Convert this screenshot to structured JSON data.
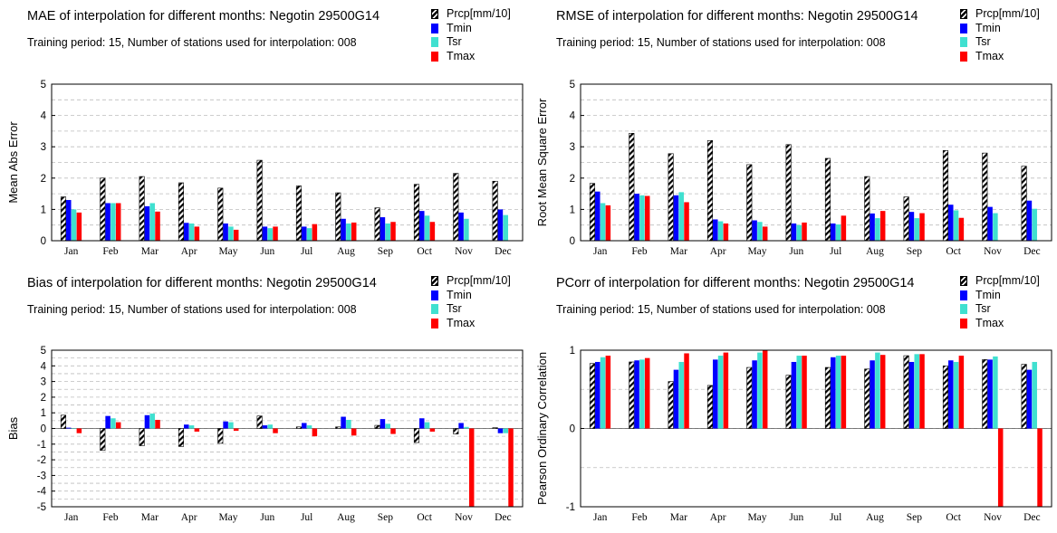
{
  "legend": [
    {
      "name": "Prcp[mm/10]",
      "color": "hatch"
    },
    {
      "name": "Tmin",
      "color": "#0000ff"
    },
    {
      "name": "Tsr",
      "color": "#40e0d0"
    },
    {
      "name": "Tmax",
      "color": "#ff0000"
    }
  ],
  "months": [
    "Jan",
    "Feb",
    "Mar",
    "Apr",
    "May",
    "Jun",
    "Jul",
    "Aug",
    "Sep",
    "Oct",
    "Nov",
    "Dec"
  ],
  "chart_data": [
    {
      "id": "mae",
      "type": "bar",
      "title": "MAE of interpolation for different months: Negotin  29500G14",
      "subtitle": "Training period: 15, Number of stations used for interpolation: 008",
      "ylabel": "Mean Abs Error",
      "xlabel": "",
      "ylim": [
        0,
        5
      ],
      "yticks": [
        "0",
        "1",
        "2",
        "3",
        "4",
        "5"
      ],
      "ytick_values": [
        0,
        1,
        2,
        3,
        4,
        5
      ],
      "grid": true,
      "legend_position": "top-right",
      "categories": [
        "Jan",
        "Feb",
        "Mar",
        "Apr",
        "May",
        "Jun",
        "Jul",
        "Aug",
        "Sep",
        "Oct",
        "Nov",
        "Dec"
      ],
      "series": [
        {
          "name": "Prcp[mm/10]",
          "values": [
            1.4,
            2.0,
            2.05,
            1.85,
            1.68,
            2.57,
            1.75,
            1.53,
            1.05,
            1.8,
            2.15,
            1.9
          ]
        },
        {
          "name": "Tmin",
          "values": [
            1.3,
            1.2,
            1.1,
            0.57,
            0.55,
            0.45,
            0.45,
            0.7,
            0.75,
            0.95,
            0.9,
            1.0
          ]
        },
        {
          "name": "Tsr",
          "values": [
            1.0,
            1.2,
            1.2,
            0.55,
            0.45,
            0.4,
            0.4,
            0.55,
            0.55,
            0.8,
            0.7,
            0.82
          ]
        },
        {
          "name": "Tmax",
          "values": [
            0.9,
            1.2,
            0.93,
            0.45,
            0.35,
            0.45,
            0.53,
            0.58,
            0.6,
            0.6,
            null,
            null
          ]
        }
      ]
    },
    {
      "id": "rmse",
      "type": "bar",
      "title": "RMSE of interpolation for different months: Negotin  29500G14",
      "subtitle": "Training period: 15, Number of stations used for interpolation: 008",
      "ylabel": "Root Mean Square Error",
      "xlabel": "",
      "ylim": [
        0,
        5
      ],
      "yticks": [
        "0",
        "1",
        "2",
        "3",
        "4",
        "5"
      ],
      "ytick_values": [
        0,
        1,
        2,
        3,
        4,
        5
      ],
      "grid": true,
      "legend_position": "top-right",
      "categories": [
        "Jan",
        "Feb",
        "Mar",
        "Apr",
        "May",
        "Jun",
        "Jul",
        "Aug",
        "Sep",
        "Oct",
        "Nov",
        "Dec"
      ],
      "series": [
        {
          "name": "Prcp[mm/10]",
          "values": [
            1.83,
            3.43,
            2.78,
            3.2,
            2.43,
            3.07,
            2.63,
            2.05,
            1.4,
            2.88,
            2.8,
            2.38
          ]
        },
        {
          "name": "Tmin",
          "values": [
            1.57,
            1.5,
            1.45,
            0.68,
            0.65,
            0.55,
            0.55,
            0.87,
            0.92,
            1.15,
            1.08,
            1.28
          ]
        },
        {
          "name": "Tsr",
          "values": [
            1.2,
            1.45,
            1.55,
            0.62,
            0.6,
            0.5,
            0.52,
            0.72,
            0.72,
            0.97,
            0.88,
            1.02
          ]
        },
        {
          "name": "Tmax",
          "values": [
            1.13,
            1.43,
            1.23,
            0.55,
            0.45,
            0.58,
            0.8,
            0.95,
            0.88,
            0.73,
            null,
            null
          ]
        }
      ]
    },
    {
      "id": "bias",
      "type": "bar",
      "title": "Bias of interpolation for different months: Negotin  29500G14",
      "subtitle": "Training period: 15, Number of stations used for interpolation: 008",
      "ylabel": "Bias",
      "xlabel": "",
      "ylim": [
        -5,
        5
      ],
      "yticks": [
        "-5",
        "-4",
        "-3",
        "-2",
        "-1",
        "0",
        "1",
        "2",
        "3",
        "4",
        "5"
      ],
      "ytick_values": [
        -5,
        -4,
        -3,
        -2,
        -1,
        0,
        1,
        2,
        3,
        4,
        5
      ],
      "grid": true,
      "legend_position": "top-right",
      "categories": [
        "Jan",
        "Feb",
        "Mar",
        "Apr",
        "May",
        "Jun",
        "Jul",
        "Aug",
        "Sep",
        "Oct",
        "Nov",
        "Dec"
      ],
      "series": [
        {
          "name": "Prcp[mm/10]",
          "values": [
            0.85,
            -1.4,
            -1.1,
            -1.15,
            -0.95,
            0.8,
            0.1,
            0.1,
            0.2,
            -0.9,
            -0.35,
            0.05
          ]
        },
        {
          "name": "Tmin",
          "values": [
            0.05,
            0.8,
            0.85,
            0.25,
            0.45,
            0.2,
            0.35,
            0.75,
            0.6,
            0.65,
            0.35,
            -0.3
          ]
        },
        {
          "name": "Tsr",
          "values": [
            0.0,
            0.65,
            0.95,
            0.2,
            0.4,
            0.25,
            0.2,
            0.55,
            0.3,
            0.4,
            0.1,
            -0.3
          ]
        },
        {
          "name": "Tmax",
          "values": [
            -0.3,
            0.4,
            0.55,
            -0.2,
            -0.15,
            -0.3,
            -0.5,
            -0.45,
            -0.35,
            -0.2,
            -5,
            -5
          ]
        }
      ]
    },
    {
      "id": "pcorr",
      "type": "bar",
      "title": "PCorr of interpolation for different months: Negotin  29500G14",
      "subtitle": "Training period: 15, Number of stations used for interpolation: 008",
      "ylabel": "Pearson Ordinary Correlation",
      "xlabel": "",
      "ylim": [
        -1,
        1
      ],
      "yticks": [
        "-1",
        "0",
        "1"
      ],
      "ytick_values": [
        -1,
        0,
        1
      ],
      "gridlines": [
        -1,
        -0.5,
        0,
        0.5,
        1
      ],
      "grid": true,
      "legend_position": "top-right",
      "categories": [
        "Jan",
        "Feb",
        "Mar",
        "Apr",
        "May",
        "Jun",
        "Jul",
        "Aug",
        "Sep",
        "Oct",
        "Nov",
        "Dec"
      ],
      "series": [
        {
          "name": "Prcp[mm/10]",
          "values": [
            0.83,
            0.85,
            0.6,
            0.55,
            0.78,
            0.68,
            0.78,
            0.76,
            0.93,
            0.8,
            0.88,
            0.82
          ]
        },
        {
          "name": "Tmin",
          "values": [
            0.85,
            0.87,
            0.75,
            0.88,
            0.87,
            0.85,
            0.91,
            0.87,
            0.85,
            0.87,
            0.88,
            0.75
          ]
        },
        {
          "name": "Tsr",
          "values": [
            0.91,
            0.88,
            0.85,
            0.93,
            0.97,
            0.93,
            0.93,
            0.97,
            0.95,
            0.85,
            0.92,
            0.85
          ]
        },
        {
          "name": "Tmax",
          "values": [
            0.93,
            0.9,
            0.96,
            0.97,
            1.0,
            0.93,
            0.93,
            0.94,
            0.95,
            0.93,
            -1,
            -1
          ]
        }
      ]
    }
  ],
  "colors": {
    "tmin": "#0000ff",
    "tsr": "#40e0d0",
    "tmax": "#ff0000",
    "prcp": "hatch"
  }
}
